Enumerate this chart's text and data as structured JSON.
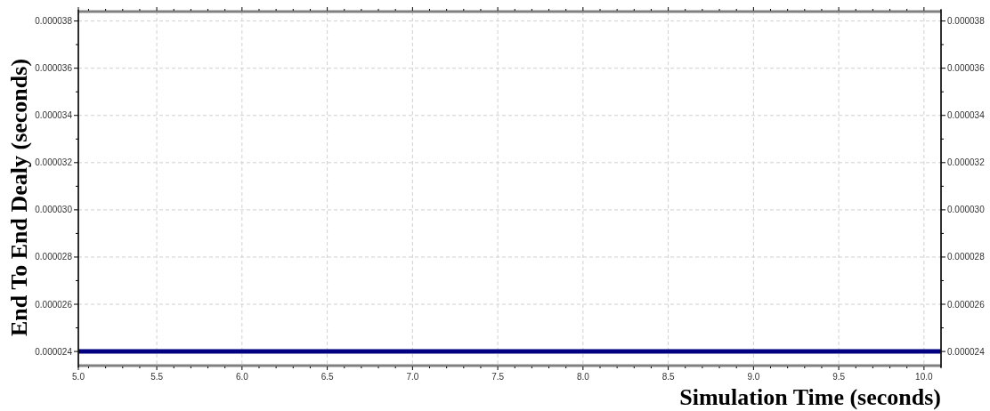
{
  "chart_data": {
    "type": "line",
    "xlabel": "Simulation Time (seconds)",
    "ylabel": "End To End Dealy (seconds)",
    "x": [
      5.04,
      10.1
    ],
    "series": [
      {
        "color": "#000080",
        "values": [
          2.4e-05,
          2.4e-05
        ]
      }
    ],
    "xlim": [
      5.04,
      10.1
    ],
    "xticks": [
      {
        "value": 5.04,
        "label": "5.0"
      },
      {
        "value": 5.1,
        "label": null
      },
      {
        "value": 5.2,
        "label": null
      },
      {
        "value": 5.3,
        "label": null
      },
      {
        "value": 5.4,
        "label": null
      },
      {
        "value": 5.5,
        "label": "5.5"
      },
      {
        "value": 5.6,
        "label": null
      },
      {
        "value": 5.7,
        "label": null
      },
      {
        "value": 5.8,
        "label": null
      },
      {
        "value": 5.9,
        "label": null
      },
      {
        "value": 6,
        "label": "6.0"
      },
      {
        "value": 6.1,
        "label": null
      },
      {
        "value": 6.2,
        "label": null
      },
      {
        "value": 6.3,
        "label": null
      },
      {
        "value": 6.4,
        "label": null
      },
      {
        "value": 6.5,
        "label": "6.5"
      },
      {
        "value": 6.6,
        "label": null
      },
      {
        "value": 6.7,
        "label": null
      },
      {
        "value": 6.8,
        "label": null
      },
      {
        "value": 6.9,
        "label": null
      },
      {
        "value": 7,
        "label": "7.0"
      },
      {
        "value": 7.1,
        "label": null
      },
      {
        "value": 7.2,
        "label": null
      },
      {
        "value": 7.3,
        "label": null
      },
      {
        "value": 7.4,
        "label": null
      },
      {
        "value": 7.5,
        "label": "7.5"
      },
      {
        "value": 7.6,
        "label": null
      },
      {
        "value": 7.7,
        "label": null
      },
      {
        "value": 7.8,
        "label": null
      },
      {
        "value": 7.9,
        "label": null
      },
      {
        "value": 8,
        "label": "8.0"
      },
      {
        "value": 8.1,
        "label": null
      },
      {
        "value": 8.2,
        "label": null
      },
      {
        "value": 8.3,
        "label": null
      },
      {
        "value": 8.4,
        "label": null
      },
      {
        "value": 8.5,
        "label": "8.5"
      },
      {
        "value": 8.6,
        "label": null
      },
      {
        "value": 8.7,
        "label": null
      },
      {
        "value": 8.8,
        "label": null
      },
      {
        "value": 8.9,
        "label": null
      },
      {
        "value": 9,
        "label": "9.0"
      },
      {
        "value": 9.1,
        "label": null
      },
      {
        "value": 9.2,
        "label": null
      },
      {
        "value": 9.3,
        "label": null
      },
      {
        "value": 9.4,
        "label": null
      },
      {
        "value": 9.5,
        "label": "9.5"
      },
      {
        "value": 9.6,
        "label": null
      },
      {
        "value": 9.7,
        "label": null
      },
      {
        "value": 9.8,
        "label": null
      },
      {
        "value": 9.9,
        "label": null
      },
      {
        "value": 10,
        "label": "10.0"
      },
      {
        "value": 10.1,
        "label": null
      }
    ],
    "ylim": [
      2.34e-05,
      3.84e-05
    ],
    "yticks": [
      {
        "value": 2.4e-05,
        "label": "0.000024"
      },
      {
        "value": 2.5e-05,
        "label": null
      },
      {
        "value": 2.6e-05,
        "label": "0.000026"
      },
      {
        "value": 2.7e-05,
        "label": null
      },
      {
        "value": 2.8e-05,
        "label": "0.000028"
      },
      {
        "value": 2.9e-05,
        "label": null
      },
      {
        "value": 3e-05,
        "label": "0.000030"
      },
      {
        "value": 3.1e-05,
        "label": null
      },
      {
        "value": 3.2e-05,
        "label": "0.000032"
      },
      {
        "value": 3.3e-05,
        "label": null
      },
      {
        "value": 3.4e-05,
        "label": "0.000034"
      },
      {
        "value": 3.5e-05,
        "label": null
      },
      {
        "value": 3.6e-05,
        "label": "0.000036"
      },
      {
        "value": 3.7e-05,
        "label": null
      },
      {
        "value": 3.8e-05,
        "label": "0.000038"
      }
    ],
    "y2lim": [
      2.34e-05,
      3.84e-05
    ],
    "y2ticks": [
      {
        "value": 2.4e-05,
        "label": "0.000024"
      },
      {
        "value": 2.5e-05,
        "label": null
      },
      {
        "value": 2.6e-05,
        "label": "0.000026"
      },
      {
        "value": 2.7e-05,
        "label": null
      },
      {
        "value": 2.8e-05,
        "label": "0.000028"
      },
      {
        "value": 2.9e-05,
        "label": null
      },
      {
        "value": 3e-05,
        "label": "0.000030"
      },
      {
        "value": 3.1e-05,
        "label": null
      },
      {
        "value": 3.2e-05,
        "label": "0.000032"
      },
      {
        "value": 3.3e-05,
        "label": null
      },
      {
        "value": 3.4e-05,
        "label": "0.000034"
      },
      {
        "value": 3.5e-05,
        "label": null
      },
      {
        "value": 3.6e-05,
        "label": "0.000036"
      },
      {
        "value": 3.7e-05,
        "label": null
      },
      {
        "value": 3.8e-05,
        "label": "0.000038"
      }
    ],
    "grid": true,
    "marker": "none",
    "line_style": "solid"
  }
}
